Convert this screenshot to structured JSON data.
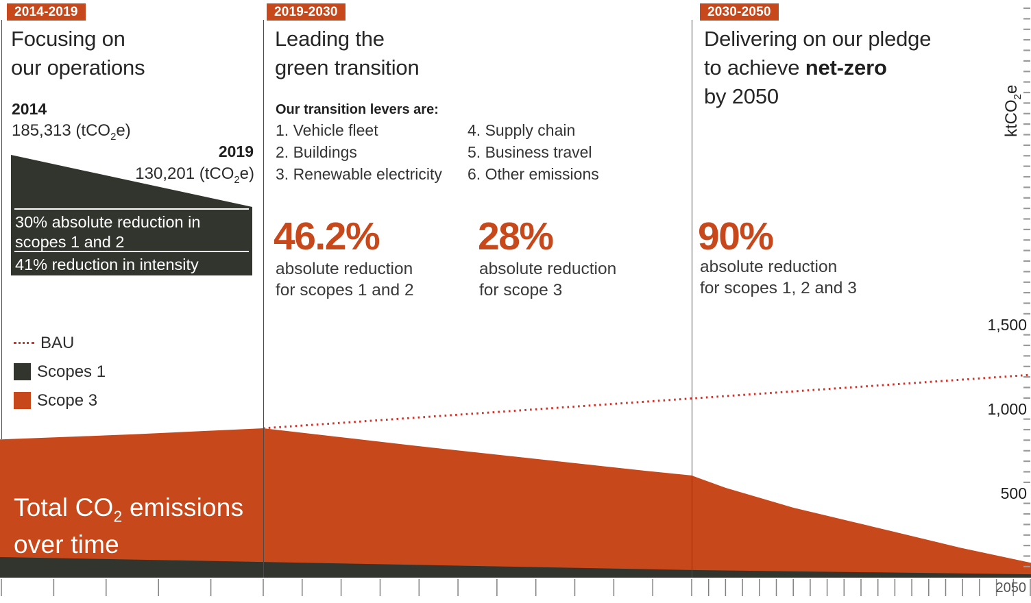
{
  "colors": {
    "accent": "#c7481b",
    "dark": "#31352d",
    "bau": "#d0332a"
  },
  "sections": {
    "operations": {
      "badge": "2014-2019",
      "heading_line1": "Focusing on",
      "heading_line2": "our operations",
      "start_year": "2014",
      "start_value": {
        "prefix": "185,313 (tCO",
        "sub": "2",
        "suffix": "e)"
      },
      "end_year": "2019",
      "end_value": {
        "prefix": "130,201 (tCO",
        "sub": "2",
        "suffix": "e)"
      },
      "wedge_stats": [
        "30% absolute reduction in scopes 1 and 2",
        "41% reduction in intensity"
      ]
    },
    "transition": {
      "badge": "2019-2030",
      "heading_line1": "Leading the",
      "heading_line2": "green transition",
      "levers_intro": "Our transition levers are:",
      "levers": [
        "1. Vehicle fleet",
        "2. Buildings",
        "3. Renewable electricity",
        "4. Supply chain",
        "5. Business travel",
        "6. Other emissions"
      ],
      "stats": [
        {
          "value": "46.2%",
          "desc_line1": "absolute reduction",
          "desc_line2": "for scopes 1 and 2"
        },
        {
          "value": "28%",
          "desc_line1": "absolute reduction",
          "desc_line2": "for scope 3"
        }
      ]
    },
    "pledge": {
      "badge": "2030-2050",
      "heading_line1": "Delivering on our pledge",
      "heading_line2_prefix": "to achieve ",
      "heading_line2_bold": "net-zero",
      "heading_line3": "by 2050",
      "stat": {
        "value": "90%",
        "desc_line1": "absolute reduction",
        "desc_line2": "for scopes 1, 2 and 3"
      }
    }
  },
  "legend": [
    {
      "label": "BAU",
      "swatch": "dotted-line"
    },
    {
      "label": "Scopes 1",
      "swatch": "dark-square"
    },
    {
      "label": "Scope 3",
      "swatch": "orange-square"
    }
  ],
  "chart_overlay": {
    "title_prefix": "Total CO",
    "title_sub": "2",
    "title_suffix": " emissions",
    "title_line2": "over time"
  },
  "chart_data": {
    "type": "area",
    "title": "Total CO2 emissions over time",
    "y_axis": {
      "unit_prefix": "ktCO",
      "unit_sub": "2",
      "unit_suffix": "e",
      "tick_values": [
        1500,
        1000,
        500
      ],
      "tick_labels": [
        "1,500",
        "1,000",
        "500"
      ],
      "range": [
        0,
        1750
      ],
      "position": "right"
    },
    "x_axis": {
      "start_year": 2014,
      "end_year": 2050,
      "tick_every_years": 1,
      "end_label": "2050",
      "section_years": [
        2019,
        2030
      ]
    },
    "series": [
      {
        "name": "BAU",
        "type": "dotted-line",
        "points": [
          [
            2019,
            886
          ],
          [
            2030,
            1063
          ],
          [
            2050,
            1203
          ]
        ]
      },
      {
        "name": "Scope 3",
        "type": "area",
        "points": [
          [
            2014,
            820
          ],
          [
            2016.5,
            850
          ],
          [
            2019,
            886
          ],
          [
            2022.8,
            785
          ],
          [
            2028.8,
            634
          ],
          [
            2030,
            606
          ],
          [
            2032,
            533
          ],
          [
            2036,
            415
          ],
          [
            2041.8,
            276
          ],
          [
            2045.8,
            179
          ],
          [
            2050,
            89
          ]
        ]
      },
      {
        "name": "Scopes 1",
        "type": "area",
        "points": [
          [
            2014,
            122
          ],
          [
            2019,
            93
          ],
          [
            2030,
            45
          ],
          [
            2050,
            20
          ]
        ]
      }
    ]
  }
}
